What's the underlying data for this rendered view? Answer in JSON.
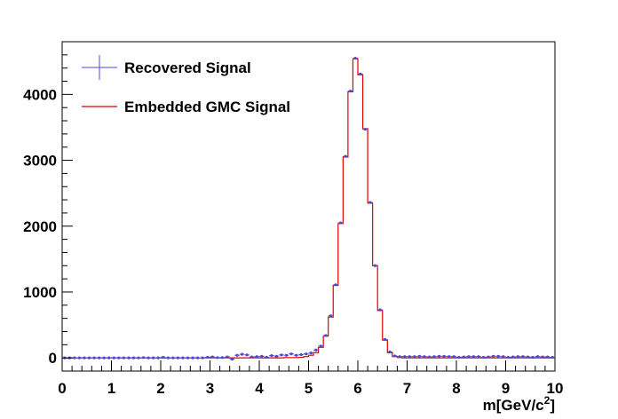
{
  "chart_data": {
    "type": "line",
    "title": "",
    "xlabel_main": "m[GeV/c",
    "xlabel_sup": "2",
    "xlabel_end": "]",
    "ylabel": "",
    "xlim": [
      0,
      10
    ],
    "ylim": [
      -200,
      4800
    ],
    "x_ticks": [
      0,
      1,
      2,
      3,
      4,
      5,
      6,
      7,
      8,
      9,
      10
    ],
    "y_ticks": [
      0,
      1000,
      2000,
      3000,
      4000
    ],
    "grid": false,
    "legend_position": "top-left",
    "bin_width": 0.1,
    "x_bin_centers": [
      0.05,
      0.15,
      0.25,
      0.35,
      0.45,
      0.55,
      0.65,
      0.75,
      0.85,
      0.95,
      1.05,
      1.15,
      1.25,
      1.35,
      1.45,
      1.55,
      1.65,
      1.75,
      1.85,
      1.95,
      2.05,
      2.15,
      2.25,
      2.35,
      2.45,
      2.55,
      2.65,
      2.75,
      2.85,
      2.95,
      3.05,
      3.15,
      3.25,
      3.35,
      3.45,
      3.55,
      3.65,
      3.75,
      3.85,
      3.95,
      4.05,
      4.15,
      4.25,
      4.35,
      4.45,
      4.55,
      4.65,
      4.75,
      4.85,
      4.95,
      5.05,
      5.15,
      5.25,
      5.35,
      5.45,
      5.55,
      5.65,
      5.75,
      5.85,
      5.95,
      6.05,
      6.15,
      6.25,
      6.35,
      6.45,
      6.55,
      6.65,
      6.75,
      6.85,
      6.95,
      7.05,
      7.15,
      7.25,
      7.35,
      7.45,
      7.55,
      7.65,
      7.75,
      7.85,
      7.95,
      8.05,
      8.15,
      8.25,
      8.35,
      8.45,
      8.55,
      8.65,
      8.75,
      8.85,
      8.95,
      9.05,
      9.15,
      9.25,
      9.35,
      9.45,
      9.55,
      9.65,
      9.75,
      9.85,
      9.95
    ],
    "series": [
      {
        "name": "Recovered Signal",
        "color": "#4a4ad8",
        "style": "points-with-errors",
        "values": [
          0,
          0,
          0,
          0,
          0,
          0,
          0,
          0,
          0,
          0,
          0,
          0,
          0,
          0,
          0,
          0,
          5,
          0,
          0,
          0,
          10,
          0,
          0,
          0,
          0,
          0,
          0,
          0,
          0,
          10,
          15,
          5,
          5,
          15,
          -20,
          40,
          55,
          45,
          15,
          20,
          25,
          10,
          35,
          25,
          45,
          40,
          60,
          40,
          50,
          60,
          75,
          120,
          180,
          340,
          640,
          1110,
          2050,
          3060,
          4050,
          4550,
          4310,
          3470,
          2360,
          1400,
          730,
          280,
          90,
          30,
          20,
          20,
          20,
          20,
          25,
          20,
          15,
          20,
          25,
          25,
          20,
          20,
          10,
          15,
          20,
          20,
          20,
          10,
          15,
          25,
          25,
          20,
          10,
          15,
          20,
          20,
          15,
          10,
          20,
          15,
          15,
          10
        ]
      },
      {
        "name": "Embedded GMC Signal",
        "color": "#e00000",
        "style": "step",
        "values": [
          0,
          0,
          0,
          0,
          0,
          0,
          0,
          0,
          0,
          0,
          0,
          0,
          0,
          0,
          0,
          0,
          0,
          0,
          0,
          0,
          0,
          0,
          0,
          0,
          0,
          0,
          0,
          0,
          0,
          0,
          0,
          0,
          0,
          0,
          0,
          0,
          0,
          0,
          0,
          0,
          0,
          0,
          0,
          0,
          0,
          5,
          5,
          5,
          10,
          20,
          40,
          80,
          160,
          330,
          620,
          1100,
          2040,
          3050,
          4040,
          4540,
          4300,
          3480,
          2350,
          1400,
          720,
          270,
          80,
          20,
          5,
          0,
          0,
          0,
          0,
          0,
          0,
          0,
          0,
          0,
          0,
          0,
          0,
          0,
          0,
          0,
          0,
          0,
          0,
          0,
          0,
          0,
          0,
          0,
          0,
          0,
          0,
          0,
          0,
          0,
          0,
          0
        ]
      }
    ]
  }
}
